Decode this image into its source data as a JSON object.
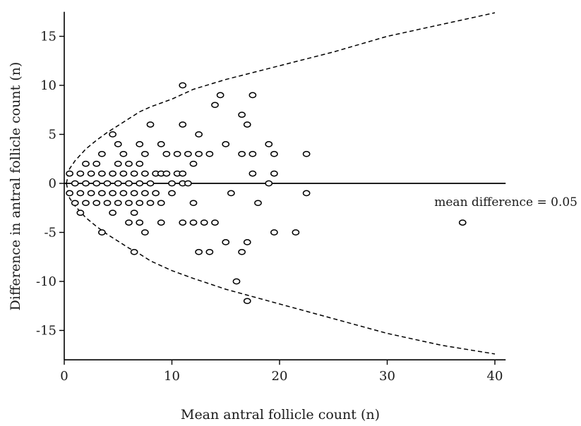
{
  "chart_data": {
    "type": "scatter",
    "title": "",
    "xlabel": "Mean antral follicle count (n)",
    "ylabel": "Difference in antral follicle count (n)",
    "xlim": [
      0,
      41
    ],
    "ylim": [
      -18,
      17.5
    ],
    "x_ticks": [
      0,
      10,
      20,
      30,
      40
    ],
    "y_ticks": [
      -15,
      -10,
      -5,
      0,
      5,
      10,
      15
    ],
    "grid": false,
    "annotation": "mean difference = 0.05",
    "mean_difference": 0.05,
    "reference_line_y": 0,
    "limits_of_agreement": {
      "style": "dashed",
      "upper": [
        [
          0.2,
          0
        ],
        [
          0.5,
          1.5
        ],
        [
          1,
          2.3
        ],
        [
          2,
          3.5
        ],
        [
          3,
          4.4
        ],
        [
          4,
          5.2
        ],
        [
          5,
          5.9
        ],
        [
          6,
          6.6
        ],
        [
          7,
          7.3
        ],
        [
          8,
          7.8
        ],
        [
          10,
          8.6
        ],
        [
          12,
          9.6
        ],
        [
          15,
          10.6
        ],
        [
          20,
          12
        ],
        [
          25,
          13.4
        ],
        [
          30,
          15
        ],
        [
          35,
          16.2
        ],
        [
          40,
          17.4
        ]
      ],
      "lower": [
        [
          0.2,
          0
        ],
        [
          0.5,
          -1.5
        ],
        [
          1,
          -2.3
        ],
        [
          2,
          -3.5
        ],
        [
          3,
          -4.4
        ],
        [
          4,
          -5.2
        ],
        [
          5,
          -5.9
        ],
        [
          6,
          -6.6
        ],
        [
          7,
          -7.2
        ],
        [
          8,
          -7.9
        ],
        [
          10,
          -8.9
        ],
        [
          12,
          -9.7
        ],
        [
          15,
          -10.8
        ],
        [
          20,
          -12.3
        ],
        [
          25,
          -13.8
        ],
        [
          30,
          -15.3
        ],
        [
          35,
          -16.5
        ],
        [
          40,
          -17.4
        ]
      ]
    },
    "series": [
      {
        "points": [
          [
            0.5,
            1
          ],
          [
            0.5,
            -1
          ],
          [
            1,
            0
          ],
          [
            1,
            -2
          ],
          [
            1.5,
            1
          ],
          [
            1.5,
            -1
          ],
          [
            1.5,
            -3
          ],
          [
            2,
            2
          ],
          [
            2,
            0
          ],
          [
            2,
            -2
          ],
          [
            2.5,
            1
          ],
          [
            2.5,
            -1
          ],
          [
            3,
            2
          ],
          [
            3,
            0
          ],
          [
            3,
            -2
          ],
          [
            3.5,
            3
          ],
          [
            3.5,
            1
          ],
          [
            3.5,
            -1
          ],
          [
            3.5,
            -5
          ],
          [
            4,
            0
          ],
          [
            4,
            -2
          ],
          [
            4.5,
            5
          ],
          [
            4.5,
            1
          ],
          [
            4.5,
            -1
          ],
          [
            4.5,
            -3
          ],
          [
            5,
            4
          ],
          [
            5,
            2
          ],
          [
            5,
            0
          ],
          [
            5,
            -2
          ],
          [
            5.5,
            3
          ],
          [
            5.5,
            1
          ],
          [
            5.5,
            -1
          ],
          [
            6,
            2
          ],
          [
            6,
            0
          ],
          [
            6,
            -2
          ],
          [
            6,
            -4
          ],
          [
            6.5,
            1
          ],
          [
            6.5,
            -1
          ],
          [
            6.5,
            -3
          ],
          [
            6.5,
            -7
          ],
          [
            7,
            4
          ],
          [
            7,
            2
          ],
          [
            7,
            0
          ],
          [
            7,
            -2
          ],
          [
            7,
            -4
          ],
          [
            7.5,
            3
          ],
          [
            7.5,
            1
          ],
          [
            7.5,
            -1
          ],
          [
            7.5,
            -5
          ],
          [
            8,
            6
          ],
          [
            8,
            0
          ],
          [
            8,
            -2
          ],
          [
            8.5,
            1
          ],
          [
            8.5,
            -1
          ],
          [
            9,
            4
          ],
          [
            9,
            1
          ],
          [
            9,
            -2
          ],
          [
            9,
            -4
          ],
          [
            9.5,
            3
          ],
          [
            9.5,
            1
          ],
          [
            10,
            0
          ],
          [
            10,
            -1
          ],
          [
            10.5,
            3
          ],
          [
            10.5,
            1
          ],
          [
            11,
            10
          ],
          [
            11,
            6
          ],
          [
            11,
            1
          ],
          [
            11,
            0
          ],
          [
            11,
            -4
          ],
          [
            11.5,
            3
          ],
          [
            11.5,
            0
          ],
          [
            12,
            2
          ],
          [
            12,
            -2
          ],
          [
            12,
            -4
          ],
          [
            12.5,
            5
          ],
          [
            12.5,
            3
          ],
          [
            12.5,
            -7
          ],
          [
            13,
            -4
          ],
          [
            13.5,
            3
          ],
          [
            13.5,
            -7
          ],
          [
            14,
            8
          ],
          [
            14,
            -4
          ],
          [
            14.5,
            9
          ],
          [
            15,
            4
          ],
          [
            15,
            -6
          ],
          [
            15.5,
            -1
          ],
          [
            16,
            -10
          ],
          [
            16.5,
            7
          ],
          [
            16.5,
            3
          ],
          [
            16.5,
            -7
          ],
          [
            17,
            6
          ],
          [
            17,
            -6
          ],
          [
            17,
            -12
          ],
          [
            17.5,
            9
          ],
          [
            17.5,
            3
          ],
          [
            17.5,
            1
          ],
          [
            18,
            -2
          ],
          [
            19,
            4
          ],
          [
            19,
            0
          ],
          [
            19.5,
            3
          ],
          [
            19.5,
            1
          ],
          [
            19.5,
            -5
          ],
          [
            21.5,
            -5
          ],
          [
            22.5,
            3
          ],
          [
            22.5,
            -1
          ],
          [
            37,
            -4
          ]
        ]
      }
    ]
  }
}
